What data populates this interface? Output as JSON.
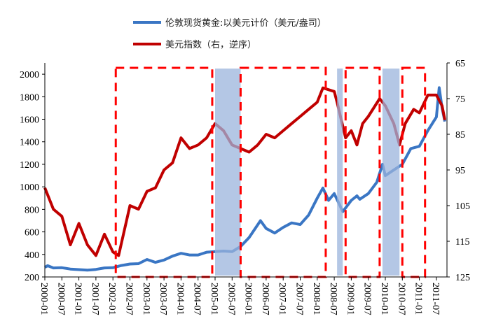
{
  "chart_data": {
    "type": "line",
    "title": "",
    "legend": {
      "placement": "top-center",
      "entries": [
        {
          "label": "伦敦现货黄金:以美元计价（美元/盎司）",
          "color": "#3a76c4",
          "axis": "left"
        },
        {
          "label": "美元指数（右，逆序）",
          "color": "#c00000",
          "axis": "right"
        }
      ]
    },
    "left_axis": {
      "ylim": [
        200,
        2100
      ],
      "ticks": [
        200,
        400,
        600,
        800,
        1000,
        1200,
        1400,
        1600,
        1800,
        2000
      ]
    },
    "right_axis": {
      "ylim": [
        65,
        125
      ],
      "reversed": true,
      "ticks": [
        65,
        75,
        85,
        95,
        105,
        115,
        125
      ]
    },
    "x_ticks": [
      "2000-01",
      "2000-07",
      "2001-01",
      "2001-07",
      "2002-01",
      "2002-07",
      "2003-01",
      "2003-07",
      "2004-01",
      "2004-07",
      "2005-01",
      "2005-07",
      "2006-01",
      "2006-07",
      "2007-01",
      "2007-07",
      "2008-01",
      "2008-07",
      "2009-01",
      "2009-07",
      "2010-01",
      "2010-07",
      "2011-01",
      "2011-07"
    ],
    "series": [
      {
        "name": "伦敦现货黄金:以美元计价（美元/盎司）",
        "points": [
          [
            "2000-01",
            285
          ],
          [
            "2000-02",
            300
          ],
          [
            "2000-04",
            280
          ],
          [
            "2000-07",
            282
          ],
          [
            "2000-10",
            270
          ],
          [
            "2001-01",
            265
          ],
          [
            "2001-04",
            260
          ],
          [
            "2001-07",
            267
          ],
          [
            "2001-10",
            280
          ],
          [
            "2002-01",
            282
          ],
          [
            "2002-04",
            302
          ],
          [
            "2002-07",
            315
          ],
          [
            "2002-10",
            318
          ],
          [
            "2003-01",
            355
          ],
          [
            "2003-04",
            330
          ],
          [
            "2003-07",
            350
          ],
          [
            "2003-10",
            385
          ],
          [
            "2004-01",
            410
          ],
          [
            "2004-04",
            395
          ],
          [
            "2004-07",
            395
          ],
          [
            "2004-10",
            420
          ],
          [
            "2005-01",
            425
          ],
          [
            "2005-04",
            430
          ],
          [
            "2005-07",
            425
          ],
          [
            "2005-10",
            470
          ],
          [
            "2006-01",
            550
          ],
          [
            "2006-05",
            700
          ],
          [
            "2006-07",
            630
          ],
          [
            "2006-10",
            590
          ],
          [
            "2007-01",
            640
          ],
          [
            "2007-04",
            680
          ],
          [
            "2007-07",
            665
          ],
          [
            "2007-10",
            750
          ],
          [
            "2008-01",
            900
          ],
          [
            "2008-03",
            990
          ],
          [
            "2008-05",
            880
          ],
          [
            "2008-07",
            940
          ],
          [
            "2008-10",
            780
          ],
          [
            "2009-01",
            880
          ],
          [
            "2009-03",
            920
          ],
          [
            "2009-04",
            890
          ],
          [
            "2009-07",
            940
          ],
          [
            "2009-10",
            1040
          ],
          [
            "2009-12",
            1200
          ],
          [
            "2010-01",
            1100
          ],
          [
            "2010-04",
            1150
          ],
          [
            "2010-07",
            1200
          ],
          [
            "2010-10",
            1340
          ],
          [
            "2011-01",
            1360
          ],
          [
            "2011-04",
            1500
          ],
          [
            "2011-07",
            1620
          ],
          [
            "2011-08",
            1880
          ],
          [
            "2011-09",
            1700
          ],
          [
            "2011-10",
            1580
          ]
        ]
      },
      {
        "name": "美元指数（右，逆序）",
        "points": [
          [
            "2000-01",
            100
          ],
          [
            "2000-04",
            106
          ],
          [
            "2000-07",
            108
          ],
          [
            "2000-10",
            116
          ],
          [
            "2001-01",
            110
          ],
          [
            "2001-04",
            116
          ],
          [
            "2001-07",
            119
          ],
          [
            "2001-10",
            113
          ],
          [
            "2002-01",
            118
          ],
          [
            "2002-03",
            119
          ],
          [
            "2002-05",
            112
          ],
          [
            "2002-07",
            105
          ],
          [
            "2002-10",
            106
          ],
          [
            "2003-01",
            101
          ],
          [
            "2003-04",
            100
          ],
          [
            "2003-07",
            95
          ],
          [
            "2003-10",
            93
          ],
          [
            "2004-01",
            86
          ],
          [
            "2004-04",
            89
          ],
          [
            "2004-07",
            88
          ],
          [
            "2004-10",
            86
          ],
          [
            "2005-01",
            82
          ],
          [
            "2005-04",
            84
          ],
          [
            "2005-07",
            88
          ],
          [
            "2005-10",
            89
          ],
          [
            "2006-01",
            90
          ],
          [
            "2006-04",
            88
          ],
          [
            "2006-07",
            85
          ],
          [
            "2006-10",
            86
          ],
          [
            "2007-01",
            84
          ],
          [
            "2007-04",
            82
          ],
          [
            "2007-07",
            80
          ],
          [
            "2007-10",
            78
          ],
          [
            "2008-01",
            76
          ],
          [
            "2008-03",
            72
          ],
          [
            "2008-07",
            73
          ],
          [
            "2008-08",
            76
          ],
          [
            "2008-11",
            86
          ],
          [
            "2009-01",
            84
          ],
          [
            "2009-03",
            88
          ],
          [
            "2009-05",
            82
          ],
          [
            "2009-07",
            80
          ],
          [
            "2009-11",
            75
          ],
          [
            "2010-01",
            77
          ],
          [
            "2010-04",
            82
          ],
          [
            "2010-06",
            88
          ],
          [
            "2010-08",
            82
          ],
          [
            "2010-11",
            78
          ],
          [
            "2011-01",
            79
          ],
          [
            "2011-04",
            74
          ],
          [
            "2011-07",
            74
          ],
          [
            "2011-09",
            77
          ],
          [
            "2011-10",
            81
          ]
        ]
      }
    ],
    "shaded_periods": [
      [
        "2005-01",
        "2005-10"
      ],
      [
        "2008-08",
        "2008-10"
      ],
      [
        "2009-12",
        "2010-06"
      ]
    ],
    "dashed_boxes": [
      [
        "2002-02",
        "2008-04"
      ],
      [
        "2008-12",
        "2009-11"
      ],
      [
        "2010-07",
        "2011-04"
      ]
    ],
    "dashed_box_ranges": [
      [
        "2002-02",
        "2004-12"
      ],
      [
        "2005-10",
        "2008-04"
      ],
      [
        "2008-11",
        "2009-11"
      ],
      [
        "2010-07",
        "2011-03"
      ]
    ]
  }
}
